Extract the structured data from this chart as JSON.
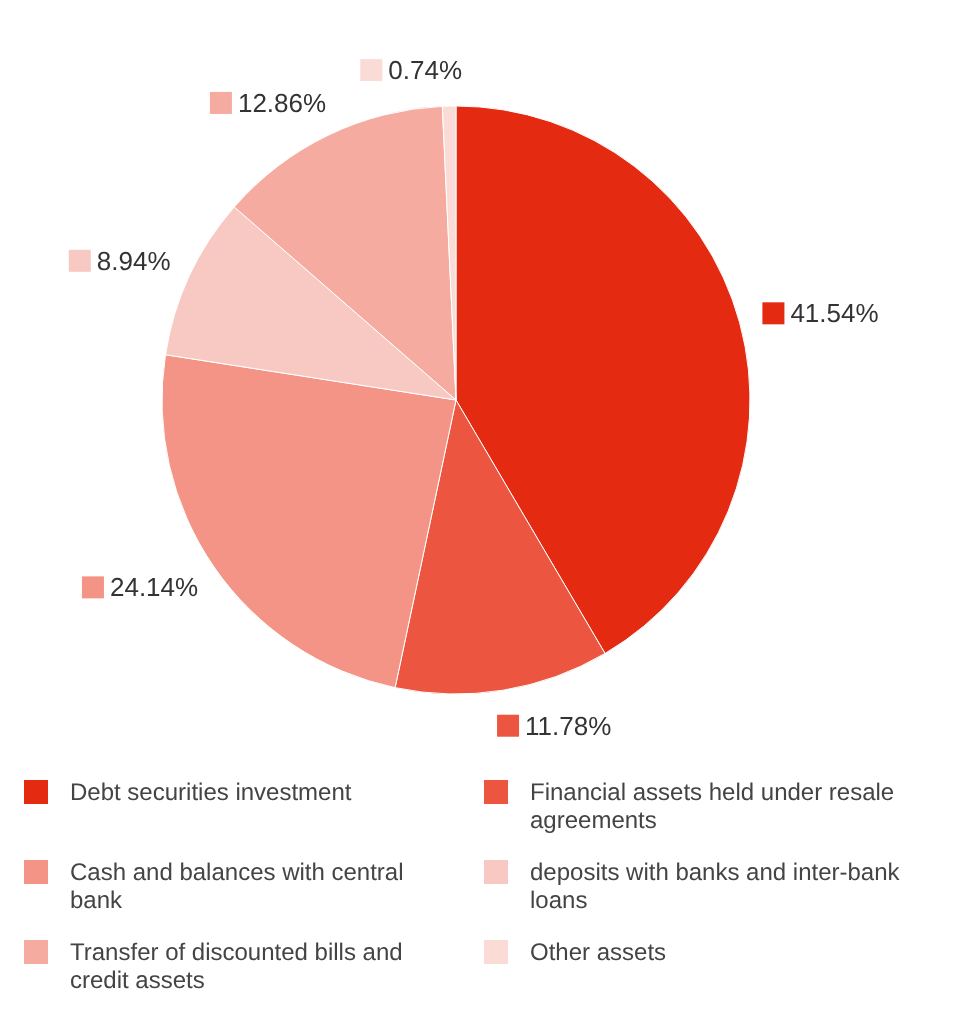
{
  "chart_data": {
    "type": "pie",
    "categories": [
      "Debt securities investment",
      "Financial assets held under resale agreements",
      "Cash and balances with central bank",
      "deposits with banks and inter-bank loans",
      "Transfer of discounted bills and credit assets",
      "Other assets"
    ],
    "values": [
      41.54,
      11.78,
      24.14,
      8.94,
      12.86,
      0.74
    ],
    "value_labels": [
      "41.54%",
      "11.78%",
      "24.14%",
      "8.94%",
      "12.86%",
      "0.74%"
    ],
    "colors": [
      "#e52a12",
      "#ec5540",
      "#f39486",
      "#f7c9c2",
      "#f5aba0",
      "#fadbd6"
    ],
    "legend": "bottom"
  }
}
